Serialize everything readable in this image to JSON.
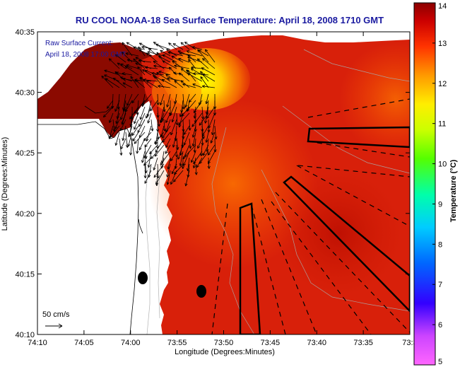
{
  "title": "RU COOL  NOAA-18  Sea Surface Temperature:  April 18, 2008 1710 GMT",
  "annotation": {
    "line1": "Raw Surface Current:",
    "line2": "April 18, 2008 17:00 GMT"
  },
  "scale_label": "50 cm/s",
  "chart_data": {
    "type": "heatmap",
    "title": "RU COOL  NOAA-18  Sea Surface Temperature:  April 18, 2008 1710 GMT",
    "xlabel": "Longitude (Degrees:Minutes)",
    "ylabel": "Latitude (Degrees:Minutes)",
    "x_ticks": [
      "74:10",
      "74:05",
      "74:00",
      "73:55",
      "73:50",
      "73:45",
      "73:40",
      "73:35",
      "73:3"
    ],
    "y_ticks": [
      "40:35",
      "40:30",
      "40:25",
      "40:20",
      "40:15",
      "40:10"
    ],
    "colorbar": {
      "label": "Temperature (°C)",
      "range": [
        5,
        14
      ],
      "ticks": [
        "14",
        "13",
        "12",
        "11",
        "10",
        "9",
        "8",
        "7",
        "6",
        "5"
      ]
    },
    "colors": {
      "warm": "#cc1a00",
      "hot": "#8b0000",
      "yellow": "#ffee00",
      "title": "#1a1aa0"
    }
  }
}
